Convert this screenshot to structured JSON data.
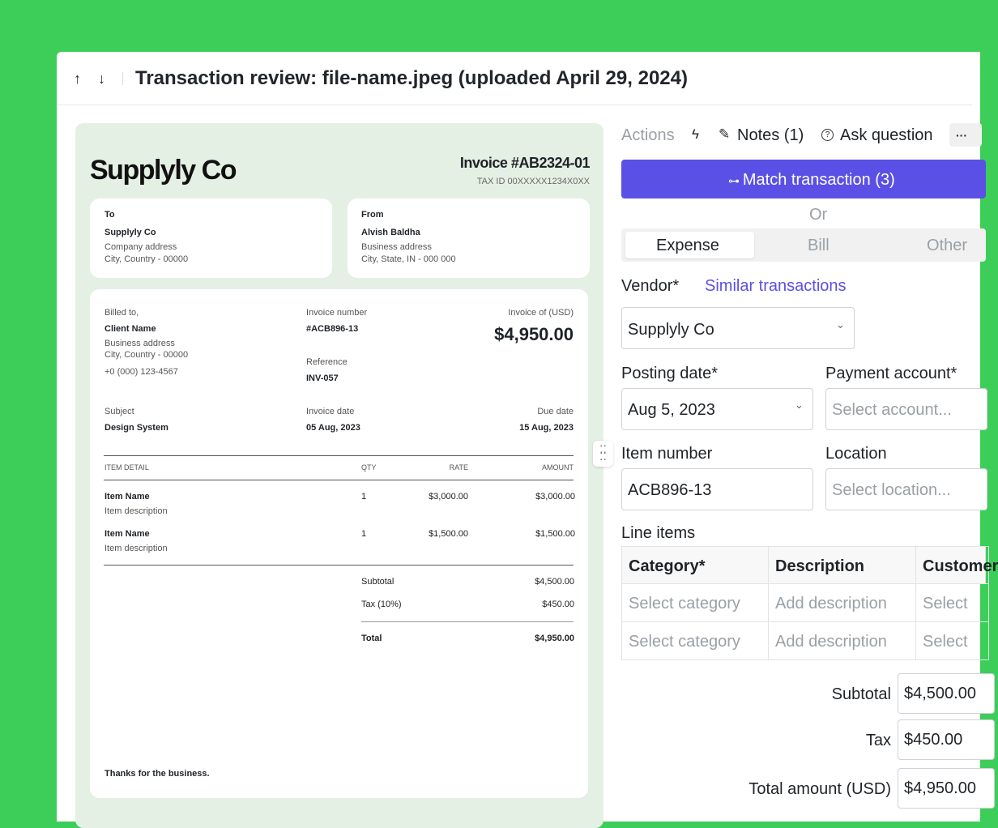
{
  "header": {
    "title": "Transaction review: file-name.jpeg (uploaded April 29, 2024)"
  },
  "invoice": {
    "company": "Supplyly Co",
    "number": "Invoice #AB2324-01",
    "tax_id": "TAX ID 00XXXXX1234X0XX",
    "to": {
      "label": "To",
      "name": "Supplyly Co",
      "lines": [
        "Company address",
        "City, Country - 00000"
      ]
    },
    "from": {
      "label": "From",
      "name": "Alvish Baldha",
      "lines": [
        "Business address",
        "City, State, IN - 000 000"
      ]
    },
    "billed_to": {
      "label": "Billed to,",
      "name": "Client Name",
      "lines": [
        "Business address",
        "City, Country - 00000",
        "+0 (000) 123-4567"
      ]
    },
    "invoice_number": {
      "label": "Invoice number",
      "value": "#ACB896-13"
    },
    "reference": {
      "label": "Reference",
      "value": "INV-057"
    },
    "invoice_of": {
      "label": "Invoice of (USD)",
      "value": "$4,950.00"
    },
    "subject": {
      "label": "Subject",
      "value": "Design System"
    },
    "invoice_date": {
      "label": "Invoice date",
      "value": "05 Aug, 2023"
    },
    "due_date": {
      "label": "Due date",
      "value": "15 Aug, 2023"
    },
    "items": {
      "headers": [
        "ITEM DETAIL",
        "QTY",
        "RATE",
        "AMOUNT"
      ],
      "rows": [
        {
          "name": "Item Name",
          "description": "Item description",
          "qty": "1",
          "rate": "$3,000.00",
          "amount": "$3,000.00"
        },
        {
          "name": "Item Name",
          "description": "Item description",
          "qty": "1",
          "rate": "$1,500.00",
          "amount": "$1,500.00"
        }
      ]
    },
    "totals": [
      {
        "label": "Subtotal",
        "value": "$4,500.00"
      },
      {
        "label": "Tax (10%)",
        "value": "$450.00"
      },
      {
        "label": "Total",
        "value": "$4,950.00"
      }
    ],
    "footer": "Thanks for the business."
  },
  "panel": {
    "actions": "Actions",
    "notes": "Notes (1)",
    "ask": "Ask question",
    "more": "···",
    "match": "Match transaction (3)",
    "or": "Or",
    "tabs": [
      "Expense",
      "Bill",
      "Other"
    ],
    "vendor": {
      "label": "Vendor*",
      "link": "Similar transactions",
      "value": "Supplyly Co"
    },
    "posting_date": {
      "label": "Posting date*",
      "value": "Aug 5, 2023"
    },
    "payment_account": {
      "label": "Payment account*",
      "placeholder": "Select account..."
    },
    "item_number": {
      "label": "Item number",
      "value": "ACB896-13"
    },
    "location": {
      "label": "Location",
      "placeholder": "Select location..."
    },
    "line_items": {
      "title": "Line items",
      "headers": [
        "Category*",
        "Description",
        "Customer"
      ],
      "rows": [
        [
          "Select category",
          "Add description",
          "Select"
        ],
        [
          "Select category",
          "Add description",
          "Select"
        ]
      ]
    },
    "totals": [
      {
        "label": "Subtotal",
        "value": "$4,500.00"
      },
      {
        "label": "Tax",
        "value": "$450.00"
      },
      {
        "label": "Total amount (USD)",
        "value": "$4,950.00"
      }
    ]
  }
}
